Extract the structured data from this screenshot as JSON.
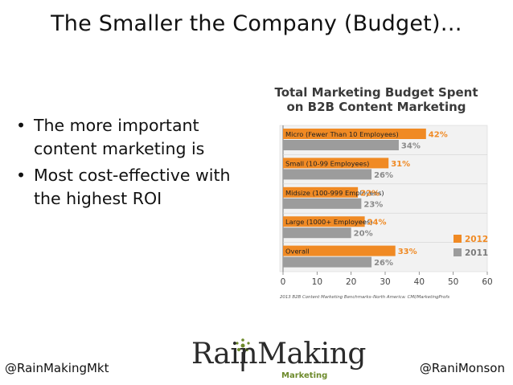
{
  "slide": {
    "title": "The Smaller the Company (Budget)…",
    "bullets": [
      "The more important content marketing is",
      "Most cost-effective with the highest ROI"
    ],
    "footer_left": "@RainMakingMkt",
    "footer_right": "@RaniMonson",
    "logo_text": "RainMaking",
    "logo_subtext": "Marketing"
  },
  "chart_data": {
    "type": "bar",
    "orientation": "horizontal",
    "title": "Total Marketing Budget Spent on B2B Content Marketing",
    "categories": [
      "Micro (Fewer Than 10 Employees)",
      "Small (10-99 Employees)",
      "Midsize (100-999 Employees)",
      "Large (1000+ Employees)",
      "Overall"
    ],
    "series": [
      {
        "name": "2012",
        "values": [
          42,
          31,
          22,
          24,
          33
        ],
        "color": "#f08a24"
      },
      {
        "name": "2011",
        "values": [
          34,
          26,
          23,
          20,
          26
        ],
        "color": "#9c9c9c"
      }
    ],
    "value_labels": {
      "2012": [
        "42%",
        "31%",
        "22%",
        "24%",
        "33%"
      ],
      "2011": [
        "34%",
        "26%",
        "23%",
        "20%",
        "26%"
      ]
    },
    "xlim": [
      0,
      60
    ],
    "xticks": [
      0,
      10,
      20,
      30,
      40,
      50,
      60
    ],
    "legend_position": "right",
    "source": "2013 B2B Content Marketing Benchmarks–North America: CMI/MarketingProfs",
    "grid": false
  }
}
